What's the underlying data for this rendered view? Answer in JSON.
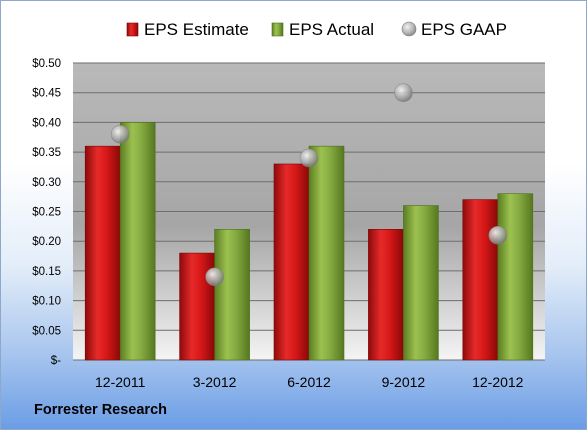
{
  "chart_data": {
    "type": "bar",
    "categories": [
      "12-2011",
      "3-2012",
      "6-2012",
      "9-2012",
      "12-2012"
    ],
    "series": [
      {
        "name": "EPS Estimate",
        "kind": "bar",
        "color": "#d01818",
        "values": [
          0.36,
          0.18,
          0.33,
          0.22,
          0.27
        ]
      },
      {
        "name": "EPS Actual",
        "kind": "bar",
        "color": "#7ea33a",
        "values": [
          0.4,
          0.22,
          0.36,
          0.26,
          0.28
        ]
      },
      {
        "name": "EPS GAAP",
        "kind": "marker",
        "color": "#a0a0a0",
        "values": [
          0.38,
          0.14,
          0.34,
          0.45,
          0.21
        ]
      }
    ],
    "yticks": [
      0,
      0.05,
      0.1,
      0.15,
      0.2,
      0.25,
      0.3,
      0.35,
      0.4,
      0.45,
      0.5
    ],
    "ytick_labels": [
      "$-",
      "$0.05",
      "$0.10",
      "$0.15",
      "$0.20",
      "$0.25",
      "$0.30",
      "$0.35",
      "$0.40",
      "$0.45",
      "$0.50"
    ],
    "ylim": [
      0,
      0.5
    ],
    "grid": true,
    "legend_position": "top"
  },
  "source_label": "Forrester Research"
}
